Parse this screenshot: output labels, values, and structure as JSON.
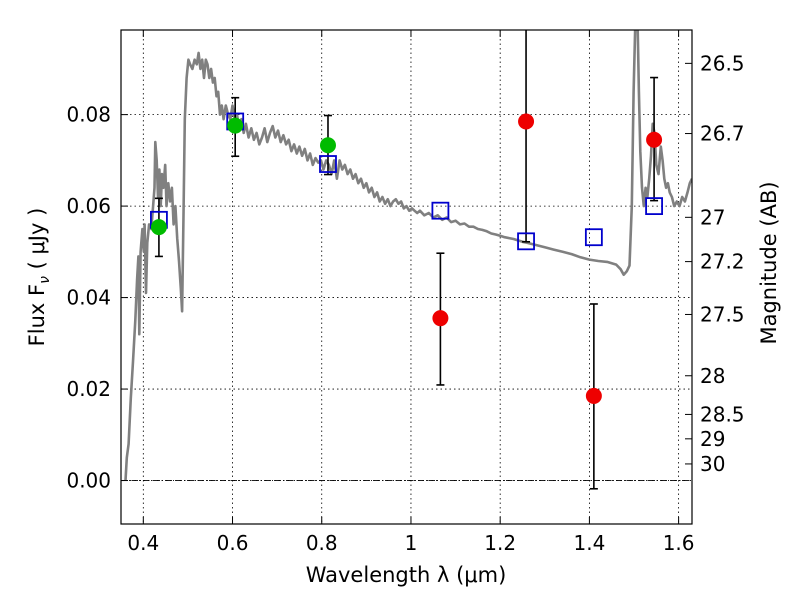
{
  "chart_data": {
    "type": "scatter",
    "title": "",
    "xlabel": "Wavelength  λ (μm)",
    "ylabel": "Flux  F",
    "ylabel_sub": "ν",
    "ylabel_unit": " ( μJy )",
    "y2label": "Magnitude (AB)",
    "xlim": [
      0.35,
      1.63
    ],
    "ylim": [
      -0.0095,
      0.0985
    ],
    "grid": true,
    "x_ticks": [
      {
        "value": 0.4,
        "label": "0.4"
      },
      {
        "value": 0.6,
        "label": "0.6"
      },
      {
        "value": 0.8,
        "label": "0.8"
      },
      {
        "value": 1.0,
        "label": "1"
      },
      {
        "value": 1.2,
        "label": "1.2"
      },
      {
        "value": 1.4,
        "label": "1.4"
      },
      {
        "value": 1.6,
        "label": "1.6"
      }
    ],
    "y_ticks": [
      {
        "value": 0.0,
        "label": "0.00"
      },
      {
        "value": 0.02,
        "label": "0.02"
      },
      {
        "value": 0.04,
        "label": "0.04"
      },
      {
        "value": 0.06,
        "label": "0.06"
      },
      {
        "value": 0.08,
        "label": "0.08"
      }
    ],
    "y2_ticks": [
      {
        "value": 26.5,
        "label": "26.5"
      },
      {
        "value": 26.7,
        "label": "26.7"
      },
      {
        "value": 27.0,
        "label": "27"
      },
      {
        "value": 27.2,
        "label": "27.2"
      },
      {
        "value": 27.5,
        "label": "27.5"
      },
      {
        "value": 28.0,
        "label": "28"
      },
      {
        "value": 28.5,
        "label": "28.5"
      },
      {
        "value": 29.0,
        "label": "29"
      },
      {
        "value": 30.0,
        "label": "30"
      }
    ],
    "colors": {
      "sed": "#808080",
      "detection": "#00bb00",
      "upper_limit": "#ee0000",
      "model": "#0000cc",
      "errorbar": "#000000"
    },
    "sed_line": [
      [
        0.36,
        0.0
      ],
      [
        0.363,
        0.005
      ],
      [
        0.367,
        0.008
      ],
      [
        0.372,
        0.018
      ],
      [
        0.377,
        0.026
      ],
      [
        0.382,
        0.035
      ],
      [
        0.386,
        0.044
      ],
      [
        0.389,
        0.049
      ],
      [
        0.391,
        0.032
      ],
      [
        0.394,
        0.05
      ],
      [
        0.398,
        0.055
      ],
      [
        0.401,
        0.05
      ],
      [
        0.403,
        0.056
      ],
      [
        0.406,
        0.041
      ],
      [
        0.409,
        0.052
      ],
      [
        0.413,
        0.056
      ],
      [
        0.418,
        0.055
      ],
      [
        0.422,
        0.06
      ],
      [
        0.425,
        0.064
      ],
      [
        0.427,
        0.074
      ],
      [
        0.43,
        0.07
      ],
      [
        0.433,
        0.062
      ],
      [
        0.436,
        0.068
      ],
      [
        0.439,
        0.06
      ],
      [
        0.442,
        0.067
      ],
      [
        0.445,
        0.064
      ],
      [
        0.449,
        0.069
      ],
      [
        0.452,
        0.06
      ],
      [
        0.456,
        0.065
      ],
      [
        0.46,
        0.061
      ],
      [
        0.464,
        0.064
      ],
      [
        0.468,
        0.056
      ],
      [
        0.472,
        0.06
      ],
      [
        0.476,
        0.053
      ],
      [
        0.48,
        0.048
      ],
      [
        0.484,
        0.042
      ],
      [
        0.487,
        0.037
      ],
      [
        0.49,
        0.058
      ],
      [
        0.493,
        0.079
      ],
      [
        0.497,
        0.088
      ],
      [
        0.501,
        0.092
      ],
      [
        0.505,
        0.091
      ],
      [
        0.51,
        0.09
      ],
      [
        0.515,
        0.092
      ],
      [
        0.52,
        0.091
      ],
      [
        0.524,
        0.0935
      ],
      [
        0.528,
        0.09
      ],
      [
        0.532,
        0.092
      ],
      [
        0.536,
        0.088
      ],
      [
        0.54,
        0.092
      ],
      [
        0.544,
        0.091
      ],
      [
        0.548,
        0.088
      ],
      [
        0.552,
        0.09
      ],
      [
        0.556,
        0.087
      ],
      [
        0.56,
        0.088
      ],
      [
        0.564,
        0.084
      ],
      [
        0.568,
        0.085
      ],
      [
        0.572,
        0.08
      ],
      [
        0.576,
        0.082
      ],
      [
        0.58,
        0.079
      ],
      [
        0.585,
        0.082
      ],
      [
        0.59,
        0.08
      ],
      [
        0.595,
        0.079
      ],
      [
        0.6,
        0.082
      ],
      [
        0.605,
        0.079
      ],
      [
        0.61,
        0.08
      ],
      [
        0.615,
        0.077
      ],
      [
        0.62,
        0.079
      ],
      [
        0.625,
        0.076
      ],
      [
        0.63,
        0.078
      ],
      [
        0.636,
        0.075
      ],
      [
        0.642,
        0.077
      ],
      [
        0.648,
        0.0745
      ],
      [
        0.654,
        0.076
      ],
      [
        0.66,
        0.0735
      ],
      [
        0.666,
        0.075
      ],
      [
        0.672,
        0.077
      ],
      [
        0.678,
        0.074
      ],
      [
        0.684,
        0.076
      ],
      [
        0.69,
        0.0775
      ],
      [
        0.696,
        0.075
      ],
      [
        0.702,
        0.0765
      ],
      [
        0.708,
        0.074
      ],
      [
        0.714,
        0.0755
      ],
      [
        0.72,
        0.0735
      ],
      [
        0.726,
        0.0745
      ],
      [
        0.732,
        0.072
      ],
      [
        0.738,
        0.0735
      ],
      [
        0.744,
        0.0715
      ],
      [
        0.75,
        0.073
      ],
      [
        0.756,
        0.071
      ],
      [
        0.762,
        0.0725
      ],
      [
        0.768,
        0.07
      ],
      [
        0.774,
        0.0715
      ],
      [
        0.78,
        0.069
      ],
      [
        0.786,
        0.0705
      ],
      [
        0.792,
        0.0695
      ],
      [
        0.798,
        0.07
      ],
      [
        0.804,
        0.068
      ],
      [
        0.81,
        0.07
      ],
      [
        0.816,
        0.069
      ],
      [
        0.822,
        0.067
      ],
      [
        0.828,
        0.07
      ],
      [
        0.834,
        0.066
      ],
      [
        0.84,
        0.07
      ],
      [
        0.846,
        0.068
      ],
      [
        0.852,
        0.069
      ],
      [
        0.858,
        0.067
      ],
      [
        0.864,
        0.068
      ],
      [
        0.87,
        0.066
      ],
      [
        0.876,
        0.067
      ],
      [
        0.882,
        0.065
      ],
      [
        0.888,
        0.066
      ],
      [
        0.894,
        0.064
      ],
      [
        0.9,
        0.065
      ],
      [
        0.906,
        0.063
      ],
      [
        0.912,
        0.064
      ],
      [
        0.918,
        0.062
      ],
      [
        0.924,
        0.063
      ],
      [
        0.93,
        0.061
      ],
      [
        0.936,
        0.062
      ],
      [
        0.942,
        0.0605
      ],
      [
        0.948,
        0.0615
      ],
      [
        0.954,
        0.06
      ],
      [
        0.96,
        0.061
      ],
      [
        0.966,
        0.0615
      ],
      [
        0.972,
        0.0605
      ],
      [
        0.978,
        0.061
      ],
      [
        0.984,
        0.0595
      ],
      [
        0.99,
        0.06
      ],
      [
        0.996,
        0.059
      ],
      [
        1.002,
        0.0595
      ],
      [
        1.008,
        0.059
      ],
      [
        1.014,
        0.0585
      ],
      [
        1.02,
        0.059
      ],
      [
        1.03,
        0.058
      ],
      [
        1.04,
        0.0585
      ],
      [
        1.05,
        0.0575
      ],
      [
        1.06,
        0.058
      ],
      [
        1.07,
        0.057
      ],
      [
        1.08,
        0.0575
      ],
      [
        1.09,
        0.0565
      ],
      [
        1.1,
        0.0568
      ],
      [
        1.11,
        0.056
      ],
      [
        1.12,
        0.0562
      ],
      [
        1.13,
        0.0555
      ],
      [
        1.14,
        0.0555
      ],
      [
        1.15,
        0.055
      ],
      [
        1.16,
        0.0548
      ],
      [
        1.17,
        0.0545
      ],
      [
        1.18,
        0.054
      ],
      [
        1.19,
        0.0538
      ],
      [
        1.2,
        0.0535
      ],
      [
        1.21,
        0.0532
      ],
      [
        1.22,
        0.053
      ],
      [
        1.23,
        0.0528
      ],
      [
        1.24,
        0.0525
      ],
      [
        1.25,
        0.0522
      ],
      [
        1.26,
        0.052
      ],
      [
        1.28,
        0.0515
      ],
      [
        1.3,
        0.051
      ],
      [
        1.32,
        0.0505
      ],
      [
        1.34,
        0.05
      ],
      [
        1.36,
        0.0495
      ],
      [
        1.38,
        0.0488
      ],
      [
        1.4,
        0.0483
      ],
      [
        1.42,
        0.048
      ],
      [
        1.44,
        0.0478
      ],
      [
        1.46,
        0.0472
      ],
      [
        1.47,
        0.0462
      ],
      [
        1.477,
        0.045
      ],
      [
        1.484,
        0.0458
      ],
      [
        1.49,
        0.047
      ],
      [
        1.495,
        0.06
      ],
      [
        1.499,
        0.085
      ],
      [
        1.503,
        0.1
      ],
      [
        1.508,
        0.1
      ],
      [
        1.511,
        0.085
      ],
      [
        1.514,
        0.072
      ],
      [
        1.518,
        0.064
      ],
      [
        1.522,
        0.06
      ],
      [
        1.526,
        0.064
      ],
      [
        1.53,
        0.062
      ],
      [
        1.534,
        0.066
      ],
      [
        1.538,
        0.071
      ],
      [
        1.542,
        0.078
      ],
      [
        1.546,
        0.076
      ],
      [
        1.55,
        0.069
      ],
      [
        1.555,
        0.067
      ],
      [
        1.56,
        0.073
      ],
      [
        1.564,
        0.07
      ],
      [
        1.568,
        0.066
      ],
      [
        1.572,
        0.064
      ],
      [
        1.576,
        0.065
      ],
      [
        1.58,
        0.063
      ],
      [
        1.585,
        0.062
      ],
      [
        1.59,
        0.06
      ],
      [
        1.596,
        0.061
      ],
      [
        1.602,
        0.06
      ],
      [
        1.608,
        0.062
      ],
      [
        1.614,
        0.061
      ],
      [
        1.62,
        0.063
      ],
      [
        1.625,
        0.065
      ],
      [
        1.63,
        0.066
      ]
    ],
    "detections": [
      {
        "x": 0.435,
        "y": 0.0554,
        "yerr_low": 0.049,
        "yerr_high": 0.0617
      },
      {
        "x": 0.606,
        "y": 0.0776,
        "yerr_low": 0.0709,
        "yerr_high": 0.0837
      },
      {
        "x": 0.814,
        "y": 0.0733,
        "yerr_low": 0.0669,
        "yerr_high": 0.0798
      }
    ],
    "upper_limits": [
      {
        "x": 1.066,
        "y": 0.0355,
        "yerr_low": 0.0209,
        "yerr_high": 0.0497
      },
      {
        "x": 1.258,
        "y": 0.0785,
        "yerr_low": 0.0522,
        "yerr_high": 0.1
      },
      {
        "x": 1.41,
        "y": 0.0185,
        "yerr_low": -0.0018,
        "yerr_high": 0.0386
      },
      {
        "x": 1.545,
        "y": 0.0745,
        "yerr_low": 0.0612,
        "yerr_high": 0.0881
      }
    ],
    "model_points": [
      {
        "x": 0.435,
        "y": 0.057
      },
      {
        "x": 0.606,
        "y": 0.0785
      },
      {
        "x": 0.814,
        "y": 0.0692
      },
      {
        "x": 1.066,
        "y": 0.059
      },
      {
        "x": 1.258,
        "y": 0.0523
      },
      {
        "x": 1.41,
        "y": 0.0532
      },
      {
        "x": 1.545,
        "y": 0.06
      }
    ]
  }
}
